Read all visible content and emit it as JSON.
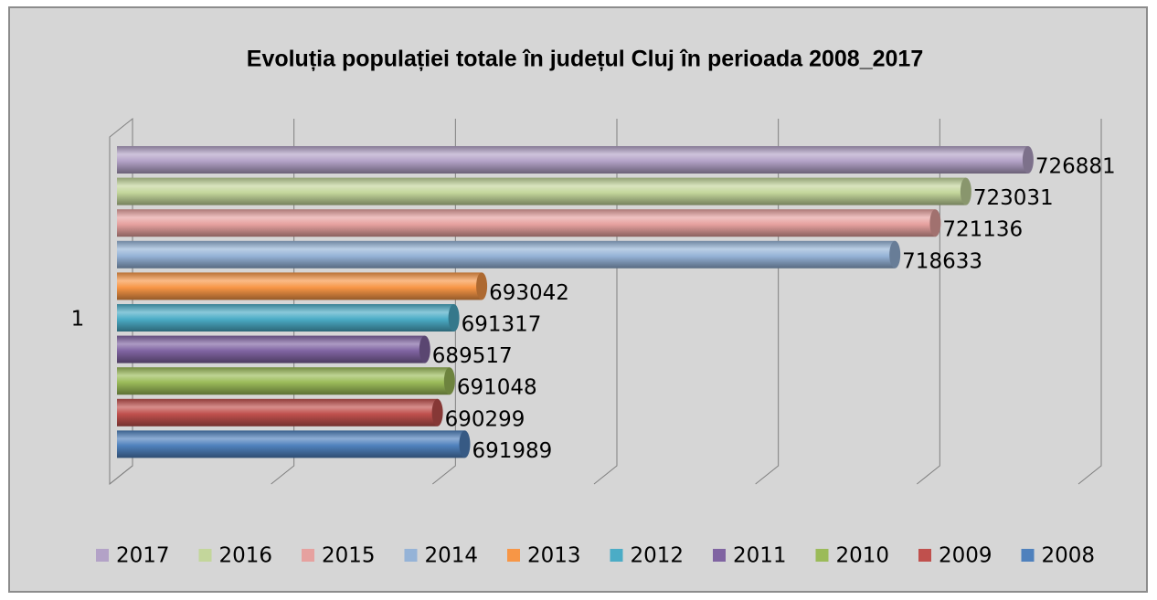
{
  "chart_data": {
    "type": "bar3d-horizontal",
    "title": "Evoluția populației totale în județul Cluj în perioada 2008_2017",
    "categories": [
      "1"
    ],
    "series": [
      {
        "name": "2017",
        "color": "#b3a2c7",
        "values": [
          726881
        ]
      },
      {
        "name": "2016",
        "color": "#c3d69b",
        "values": [
          723031
        ]
      },
      {
        "name": "2015",
        "color": "#e6a19f",
        "values": [
          721136
        ]
      },
      {
        "name": "2014",
        "color": "#95b3d7",
        "values": [
          718633
        ]
      },
      {
        "name": "2013",
        "color": "#f79646",
        "values": [
          693042
        ]
      },
      {
        "name": "2012",
        "color": "#4bacc6",
        "values": [
          691317
        ]
      },
      {
        "name": "2011",
        "color": "#8064a2",
        "values": [
          689517
        ]
      },
      {
        "name": "2010",
        "color": "#9bbb59",
        "values": [
          691048
        ]
      },
      {
        "name": "2009",
        "color": "#c0504d",
        "values": [
          690299
        ]
      },
      {
        "name": "2008",
        "color": "#4f81bd",
        "values": [
          691989
        ]
      }
    ],
    "xlim": [
      670000,
      730000
    ],
    "xticks": [
      670000,
      680000,
      690000,
      700000,
      710000,
      720000,
      730000
    ],
    "grid": true,
    "legend": "bottom"
  }
}
